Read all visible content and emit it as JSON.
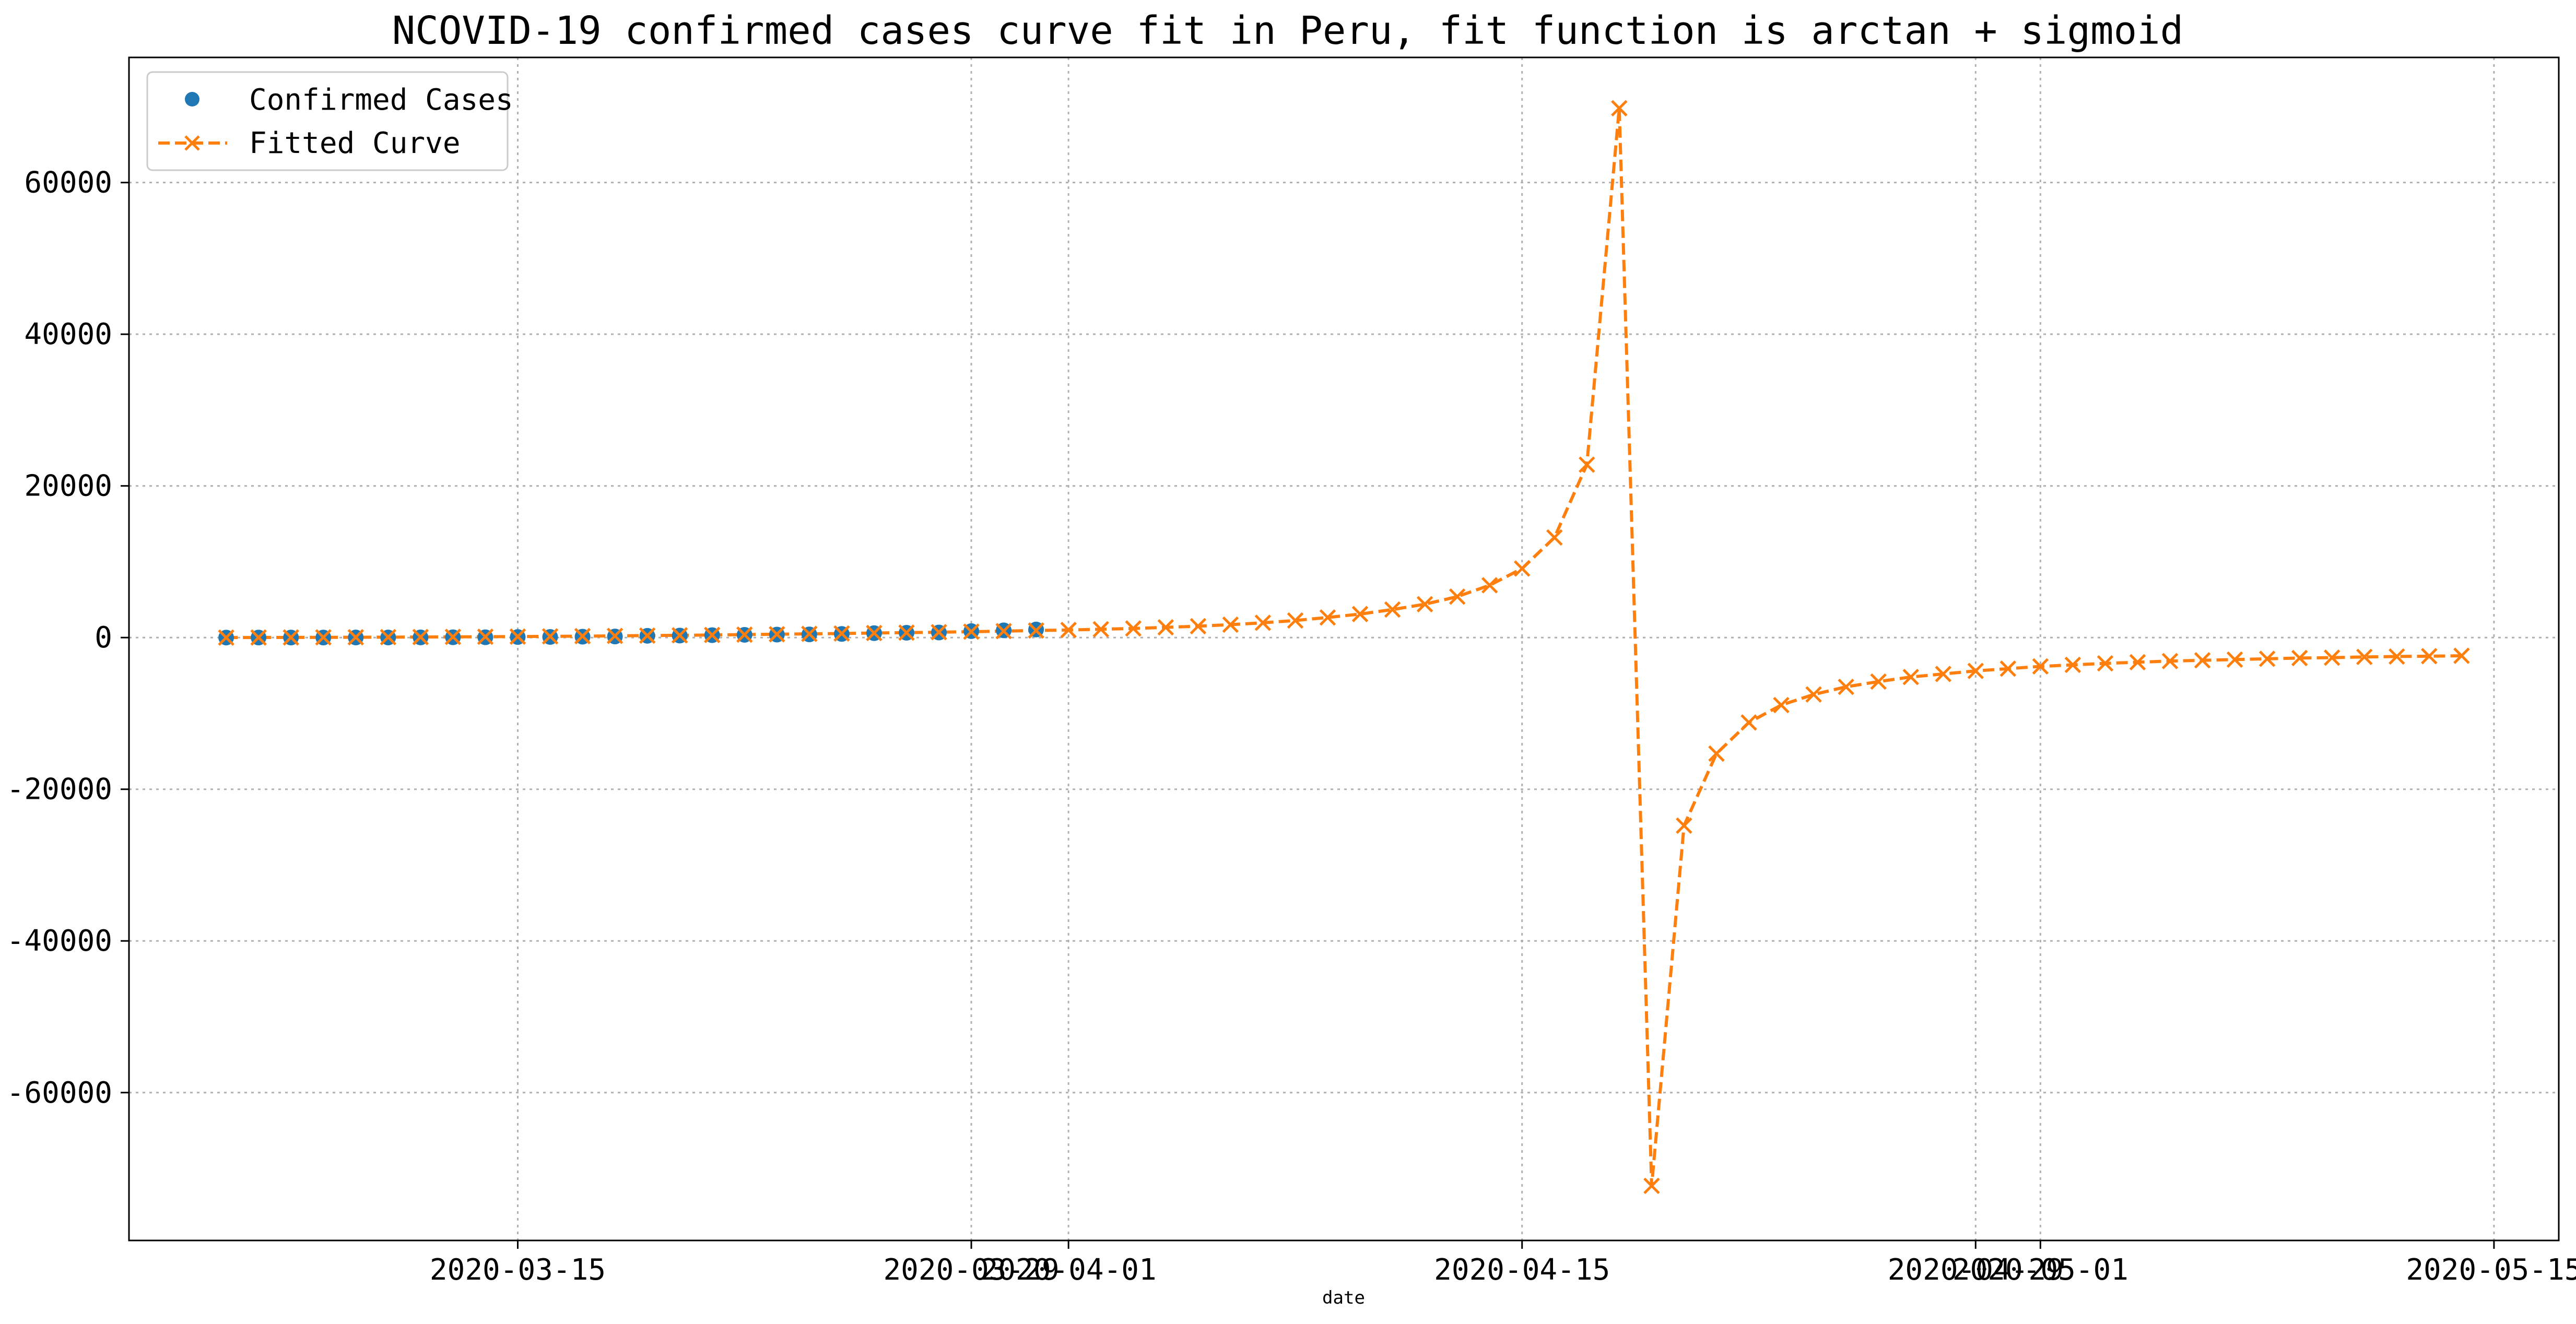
{
  "chart_data": {
    "type": "line",
    "title": "NCOVID-19 confirmed cases curve fit in Peru, fit function is arctan + sigmoid",
    "xlabel": "date",
    "ylabel": "",
    "x_ticks": [
      "2020-03-15",
      "2020-03-29",
      "2020-04-01",
      "2020-04-15",
      "2020-04-29",
      "2020-05-01",
      "2020-05-15"
    ],
    "y_ticks": [
      -60000,
      -40000,
      -20000,
      0,
      20000,
      40000,
      60000
    ],
    "xlim": [
      "2020-03-03",
      "2020-05-17"
    ],
    "ylim": [
      -79500,
      76500
    ],
    "grid": true,
    "legend_position": "top-left",
    "series": [
      {
        "name": "Confirmed Cases",
        "style": "markers-circle",
        "color": "#1f77b4",
        "points": [
          [
            "2020-03-06",
            1
          ],
          [
            "2020-03-07",
            6
          ],
          [
            "2020-03-08",
            7
          ],
          [
            "2020-03-09",
            9
          ],
          [
            "2020-03-10",
            11
          ],
          [
            "2020-03-11",
            11
          ],
          [
            "2020-03-12",
            22
          ],
          [
            "2020-03-13",
            38
          ],
          [
            "2020-03-14",
            43
          ],
          [
            "2020-03-15",
            71
          ],
          [
            "2020-03-16",
            86
          ],
          [
            "2020-03-17",
            117
          ],
          [
            "2020-03-18",
            145
          ],
          [
            "2020-03-19",
            234
          ],
          [
            "2020-03-20",
            263
          ],
          [
            "2020-03-21",
            318
          ],
          [
            "2020-03-22",
            363
          ],
          [
            "2020-03-23",
            395
          ],
          [
            "2020-03-24",
            416
          ],
          [
            "2020-03-25",
            480
          ],
          [
            "2020-03-26",
            580
          ],
          [
            "2020-03-27",
            635
          ],
          [
            "2020-03-28",
            671
          ],
          [
            "2020-03-29",
            852
          ],
          [
            "2020-03-30",
            950
          ],
          [
            "2020-03-31",
            1065
          ]
        ]
      },
      {
        "name": "Fitted Curve",
        "style": "dashed-line-x-markers",
        "color": "#ff7f0e",
        "points": [
          [
            "2020-03-06",
            0
          ],
          [
            "2020-03-07",
            10
          ],
          [
            "2020-03-08",
            20
          ],
          [
            "2020-03-09",
            30
          ],
          [
            "2020-03-10",
            40
          ],
          [
            "2020-03-11",
            55
          ],
          [
            "2020-03-12",
            70
          ],
          [
            "2020-03-13",
            90
          ],
          [
            "2020-03-14",
            110
          ],
          [
            "2020-03-15",
            130
          ],
          [
            "2020-03-16",
            160
          ],
          [
            "2020-03-17",
            190
          ],
          [
            "2020-03-18",
            220
          ],
          [
            "2020-03-19",
            260
          ],
          [
            "2020-03-20",
            300
          ],
          [
            "2020-03-21",
            340
          ],
          [
            "2020-03-22",
            390
          ],
          [
            "2020-03-23",
            440
          ],
          [
            "2020-03-24",
            490
          ],
          [
            "2020-03-25",
            540
          ],
          [
            "2020-03-26",
            600
          ],
          [
            "2020-03-27",
            650
          ],
          [
            "2020-03-28",
            710
          ],
          [
            "2020-03-29",
            780
          ],
          [
            "2020-03-30",
            850
          ],
          [
            "2020-03-31",
            930
          ],
          [
            "2020-04-01",
            1000
          ],
          [
            "2020-04-02",
            1100
          ],
          [
            "2020-04-03",
            1200
          ],
          [
            "2020-04-04",
            1350
          ],
          [
            "2020-04-05",
            1500
          ],
          [
            "2020-04-06",
            1700
          ],
          [
            "2020-04-07",
            1950
          ],
          [
            "2020-04-08",
            2250
          ],
          [
            "2020-04-09",
            2650
          ],
          [
            "2020-04-10",
            3100
          ],
          [
            "2020-04-11",
            3700
          ],
          [
            "2020-04-12",
            4400
          ],
          [
            "2020-04-13",
            5400
          ],
          [
            "2020-04-14",
            6900
          ],
          [
            "2020-04-15",
            9100
          ],
          [
            "2020-04-16",
            13200
          ],
          [
            "2020-04-17",
            22800
          ],
          [
            "2020-04-18",
            69800
          ],
          [
            "2020-04-19",
            -72300
          ],
          [
            "2020-04-20",
            -24800
          ],
          [
            "2020-04-21",
            -15300
          ],
          [
            "2020-04-22",
            -11200
          ],
          [
            "2020-04-23",
            -8900
          ],
          [
            "2020-04-24",
            -7500
          ],
          [
            "2020-04-25",
            -6500
          ],
          [
            "2020-04-26",
            -5800
          ],
          [
            "2020-04-27",
            -5200
          ],
          [
            "2020-04-28",
            -4800
          ],
          [
            "2020-04-29",
            -4400
          ],
          [
            "2020-04-30",
            -4100
          ],
          [
            "2020-05-01",
            -3800
          ],
          [
            "2020-05-02",
            -3600
          ],
          [
            "2020-05-03",
            -3400
          ],
          [
            "2020-05-04",
            -3250
          ],
          [
            "2020-05-05",
            -3100
          ],
          [
            "2020-05-06",
            -3000
          ],
          [
            "2020-05-07",
            -2900
          ],
          [
            "2020-05-08",
            -2800
          ],
          [
            "2020-05-09",
            -2700
          ],
          [
            "2020-05-10",
            -2650
          ],
          [
            "2020-05-11",
            -2550
          ],
          [
            "2020-05-12",
            -2500
          ],
          [
            "2020-05-13",
            -2450
          ],
          [
            "2020-05-14",
            -2400
          ]
        ]
      }
    ]
  }
}
